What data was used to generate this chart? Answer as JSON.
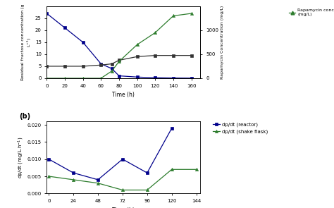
{
  "top": {
    "time": [
      0,
      20,
      40,
      60,
      72,
      80,
      100,
      120,
      140,
      160
    ],
    "fructose": [
      27,
      21,
      15,
      6,
      4,
      1,
      0.5,
      0.2,
      0.1,
      0.05
    ],
    "cell_growth": [
      5,
      5,
      5,
      5.5,
      6,
      7.5,
      9,
      9.5,
      9.5,
      9.5
    ],
    "rapamycin": [
      0,
      0,
      0,
      0,
      150,
      350,
      700,
      950,
      1300,
      1350
    ],
    "fructose_color": "#00008B",
    "cell_color": "#333333",
    "rapamycin_color": "#2E7D2E",
    "xlabel": "Time (h)",
    "xlim": [
      0,
      170
    ],
    "ylim_left": [
      0,
      30
    ],
    "ylim_right": [
      0,
      1500
    ],
    "xticks": [
      0,
      20,
      40,
      60,
      80,
      100,
      120,
      140,
      160
    ],
    "yticks_left": [
      0,
      5,
      10,
      15,
      20,
      25
    ],
    "yticks_right": [
      0,
      500,
      1000
    ]
  },
  "bottom": {
    "time_reactor": [
      0,
      24,
      48,
      72,
      96,
      120
    ],
    "dpdt_reactor": [
      0.01,
      0.006,
      0.004,
      0.01,
      0.006,
      0.019
    ],
    "time_flask": [
      0,
      24,
      48,
      72,
      96,
      120,
      144
    ],
    "dpdt_flask": [
      0.005,
      0.004,
      0.003,
      0.001,
      0.001,
      0.007,
      0.007
    ],
    "reactor_color": "#00008B",
    "flask_color": "#2E7D2E",
    "xlabel": "Time (h)",
    "xlim": [
      -2,
      148
    ],
    "ylim": [
      0.0,
      0.021
    ],
    "xticks": [
      0,
      24,
      48,
      72,
      96,
      120,
      144
    ],
    "yticks": [
      0.0,
      0.005,
      0.01,
      0.015,
      0.02
    ],
    "label_b": "(b)",
    "legend_reactor": "dp/dt (reactor)",
    "legend_flask": "dp/dt (shake flask)"
  },
  "fig_width": 4.74,
  "fig_height": 2.95,
  "dpi": 100
}
